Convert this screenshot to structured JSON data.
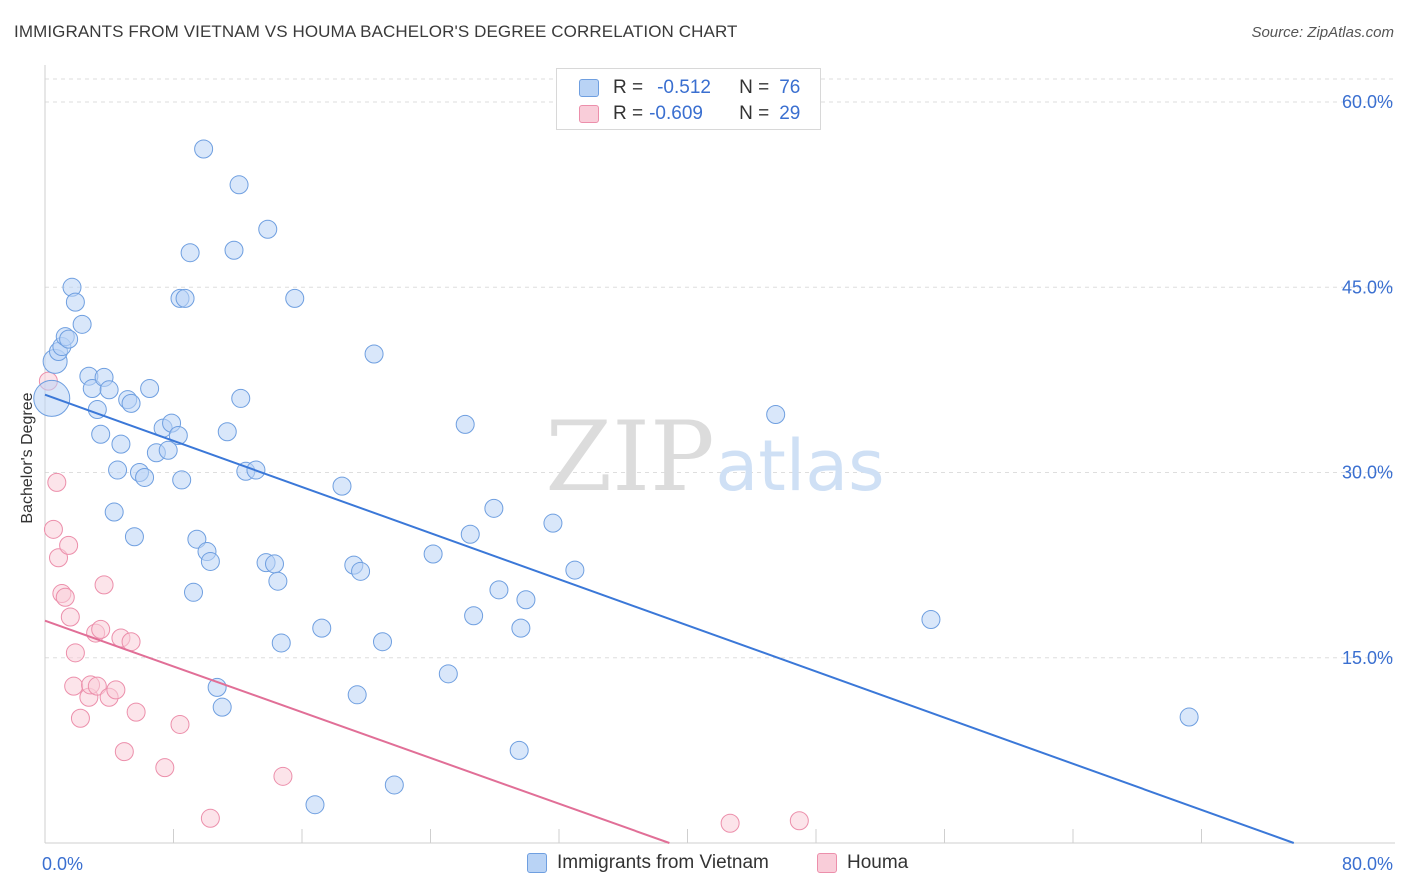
{
  "title": "IMMIGRANTS FROM VIETNAM VS HOUMA BACHELOR'S DEGREE CORRELATION CHART",
  "source": "Source: ZipAtlas.com",
  "watermark": {
    "zip": "ZIP",
    "atlas": "atlas"
  },
  "legend": {
    "series": [
      {
        "r_label": "R =",
        "r_value": "-0.512",
        "n_label": "N =",
        "n_value": "76"
      },
      {
        "r_label": "R =",
        "r_value": "-0.609",
        "n_label": "N =",
        "n_value": "29"
      }
    ]
  },
  "chart_data": {
    "type": "scatter",
    "ylabel": "Bachelor's Degree",
    "xlim": [
      0,
      80
    ],
    "ylim": [
      0,
      63
    ],
    "x_tick_labels": [
      "0.0%",
      "80.0%"
    ],
    "y_ticks": [
      15,
      30,
      45,
      60
    ],
    "y_tick_labels": [
      "15.0%",
      "30.0%",
      "45.0%",
      "60.0%"
    ],
    "grid": "horizontal dashed",
    "legend_position": "top-center",
    "colors": {
      "vietnam": "#3b78d8",
      "vietnam_fill": "#b9d3f5",
      "houma": "#e16f97",
      "houma_fill": "#f9cdd9"
    },
    "series": [
      {
        "name": "Immigrants from Vietnam",
        "color": "#3b78d8",
        "trend": {
          "x0": 0,
          "y0": 36.3,
          "x1": 74,
          "y1": 0
        },
        "points": [
          [
            0.4,
            36.0,
            18
          ],
          [
            0.6,
            39.0,
            12
          ],
          [
            0.8,
            39.8,
            9
          ],
          [
            1.0,
            40.2,
            9
          ],
          [
            1.2,
            41.0,
            9
          ],
          [
            1.4,
            40.8,
            9
          ],
          [
            1.6,
            45.0,
            9
          ],
          [
            1.8,
            43.8,
            9
          ],
          [
            2.2,
            42.0,
            9
          ],
          [
            2.6,
            37.8,
            9
          ],
          [
            2.8,
            36.8,
            9
          ],
          [
            3.1,
            35.1,
            9
          ],
          [
            3.3,
            33.1,
            9
          ],
          [
            3.5,
            37.7,
            9
          ],
          [
            3.8,
            36.7,
            9
          ],
          [
            4.1,
            26.8,
            9
          ],
          [
            4.3,
            30.2,
            9
          ],
          [
            4.5,
            32.3,
            9
          ],
          [
            4.9,
            35.9,
            9
          ],
          [
            5.1,
            35.6,
            9
          ],
          [
            5.3,
            24.8,
            9
          ],
          [
            5.6,
            30.0,
            9
          ],
          [
            5.9,
            29.6,
            9
          ],
          [
            6.2,
            36.8,
            9
          ],
          [
            6.6,
            31.6,
            9
          ],
          [
            7.0,
            33.6,
            9
          ],
          [
            7.3,
            31.8,
            9
          ],
          [
            7.5,
            34.0,
            9
          ],
          [
            7.9,
            33.0,
            9
          ],
          [
            8.0,
            44.1,
            9
          ],
          [
            8.1,
            29.4,
            9
          ],
          [
            8.3,
            44.1,
            9
          ],
          [
            8.6,
            47.8,
            9
          ],
          [
            8.8,
            20.3,
            9
          ],
          [
            9.0,
            24.6,
            9
          ],
          [
            9.4,
            56.2,
            9
          ],
          [
            9.6,
            23.6,
            9
          ],
          [
            9.8,
            22.8,
            9
          ],
          [
            10.2,
            12.6,
            9
          ],
          [
            10.5,
            11.0,
            9
          ],
          [
            10.8,
            33.3,
            9
          ],
          [
            11.2,
            48.0,
            9
          ],
          [
            11.5,
            53.3,
            9
          ],
          [
            11.6,
            36.0,
            9
          ],
          [
            11.9,
            30.1,
            9
          ],
          [
            12.5,
            30.2,
            9
          ],
          [
            13.1,
            22.7,
            9
          ],
          [
            13.2,
            49.7,
            9
          ],
          [
            13.6,
            22.6,
            9
          ],
          [
            13.8,
            21.2,
            9
          ],
          [
            14.0,
            16.2,
            9
          ],
          [
            14.8,
            44.1,
            9
          ],
          [
            16.0,
            3.1,
            9
          ],
          [
            16.4,
            17.4,
            9
          ],
          [
            17.6,
            28.9,
            9
          ],
          [
            18.3,
            22.5,
            9
          ],
          [
            18.5,
            12.0,
            9
          ],
          [
            18.7,
            22.0,
            9
          ],
          [
            19.5,
            39.6,
            9
          ],
          [
            20.0,
            16.3,
            9
          ],
          [
            20.7,
            4.7,
            9
          ],
          [
            23.0,
            23.4,
            9
          ],
          [
            23.9,
            13.7,
            9
          ],
          [
            24.9,
            33.9,
            9
          ],
          [
            25.2,
            25.0,
            9
          ],
          [
            25.4,
            18.4,
            9
          ],
          [
            26.6,
            27.1,
            9
          ],
          [
            26.9,
            20.5,
            9
          ],
          [
            28.1,
            7.5,
            9
          ],
          [
            28.2,
            17.4,
            9
          ],
          [
            28.5,
            19.7,
            9
          ],
          [
            30.1,
            25.9,
            9
          ],
          [
            31.4,
            22.1,
            9
          ],
          [
            43.3,
            34.7,
            9
          ],
          [
            52.5,
            18.1,
            9
          ],
          [
            67.8,
            10.2,
            9
          ]
        ]
      },
      {
        "name": "Houma",
        "color": "#e16f97",
        "trend": {
          "x0": 0,
          "y0": 18.0,
          "x1": 37,
          "y1": 0
        },
        "points": [
          [
            0.2,
            37.4,
            9
          ],
          [
            0.5,
            25.4,
            9
          ],
          [
            0.7,
            29.2,
            9
          ],
          [
            0.8,
            23.1,
            9
          ],
          [
            1.0,
            20.2,
            9
          ],
          [
            1.2,
            19.9,
            9
          ],
          [
            1.4,
            24.1,
            9
          ],
          [
            1.5,
            18.3,
            9
          ],
          [
            1.7,
            12.7,
            9
          ],
          [
            1.8,
            15.4,
            9
          ],
          [
            2.1,
            10.1,
            9
          ],
          [
            2.6,
            11.8,
            9
          ],
          [
            2.7,
            12.8,
            9
          ],
          [
            3.0,
            17.0,
            9
          ],
          [
            3.1,
            12.7,
            9
          ],
          [
            3.3,
            17.3,
            9
          ],
          [
            3.5,
            20.9,
            9
          ],
          [
            3.8,
            11.8,
            9
          ],
          [
            4.2,
            12.4,
            9
          ],
          [
            4.5,
            16.6,
            9
          ],
          [
            4.7,
            7.4,
            9
          ],
          [
            5.1,
            16.3,
            9
          ],
          [
            5.4,
            10.6,
            9
          ],
          [
            7.1,
            6.1,
            9
          ],
          [
            8.0,
            9.6,
            9
          ],
          [
            9.8,
            2.0,
            9
          ],
          [
            14.1,
            5.4,
            9
          ],
          [
            40.6,
            1.6,
            9
          ],
          [
            44.7,
            1.8,
            9
          ]
        ]
      }
    ]
  }
}
